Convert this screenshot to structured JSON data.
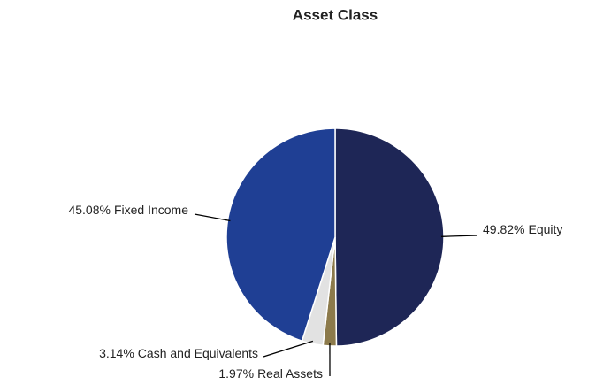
{
  "chart_data": {
    "type": "pie",
    "title": "Asset Class",
    "categories": [
      "Equity",
      "Real Assets",
      "Cash and Equivalents",
      "Fixed Income"
    ],
    "values": [
      49.82,
      1.97,
      3.14,
      45.08
    ],
    "value_labels": [
      "49.82%",
      "1.97%",
      "3.14%",
      "45.08%"
    ],
    "colors": [
      "#1e2656",
      "#8c7a4b",
      "#e2e2e2",
      "#1f3f94"
    ]
  }
}
